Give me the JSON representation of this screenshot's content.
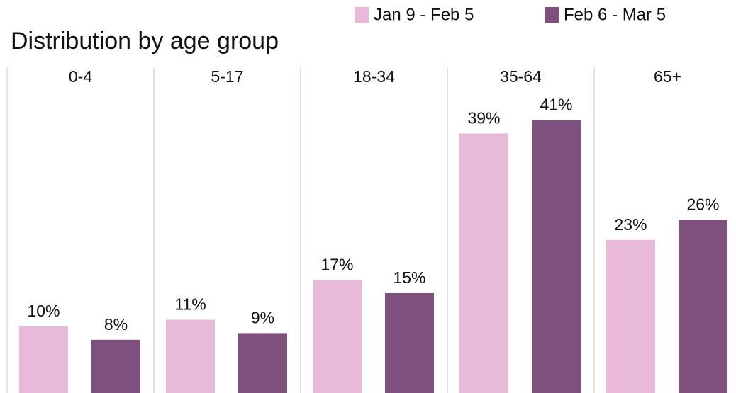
{
  "chart_data": {
    "type": "bar",
    "title": "Distribution by age group",
    "categories": [
      "0-4",
      "5-17",
      "18-34",
      "35-64",
      "65+"
    ],
    "series": [
      {
        "name": "Jan 9 - Feb 5",
        "color": "#e8b9d9",
        "values": [
          10,
          11,
          17,
          39,
          23
        ],
        "value_labels": [
          "10%",
          "11%",
          "17%",
          "39%",
          "23%"
        ]
      },
      {
        "name": "Feb 6 - Mar 5",
        "color": "#7f4f7e",
        "values": [
          8,
          9,
          15,
          41,
          26
        ],
        "value_labels": [
          "8%",
          "9%",
          "15%",
          "41%",
          "26%"
        ]
      }
    ],
    "legend": "top-right"
  }
}
